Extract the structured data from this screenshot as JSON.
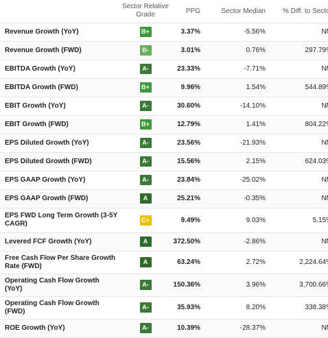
{
  "header": {
    "metric": "",
    "grade": "Sector Relative Grade",
    "ppg": "PPG",
    "median": "Sector Median",
    "diff": "% Diff. to Sector"
  },
  "grade_colors": {
    "A": "#2e6b2a",
    "A-": "#3b7a36",
    "B+": "#3d9a3a",
    "B-": "#62b055",
    "C+": "#e6c200"
  },
  "rows": [
    {
      "metric": "Revenue Growth (YoY)",
      "grade": "B+",
      "ppg": "3.37%",
      "median": "-5.56%",
      "diff": "NM"
    },
    {
      "metric": "Revenue Growth (FWD)",
      "grade": "B-",
      "ppg": "3.01%",
      "median": "0.76%",
      "diff": "297.79%"
    },
    {
      "metric": "EBITDA Growth (YoY)",
      "grade": "A-",
      "ppg": "23.33%",
      "median": "-7.71%",
      "diff": "NM"
    },
    {
      "metric": "EBITDA Growth (FWD)",
      "grade": "B+",
      "ppg": "9.96%",
      "median": "1.54%",
      "diff": "544.89%"
    },
    {
      "metric": "EBIT Growth (YoY)",
      "grade": "A-",
      "ppg": "30.60%",
      "median": "-14.10%",
      "diff": "NM"
    },
    {
      "metric": "EBIT Growth (FWD)",
      "grade": "B+",
      "ppg": "12.79%",
      "median": "1.41%",
      "diff": "804.22%"
    },
    {
      "metric": "EPS Diluted Growth (YoY)",
      "grade": "A-",
      "ppg": "23.56%",
      "median": "-21.93%",
      "diff": "NM"
    },
    {
      "metric": "EPS Diluted Growth (FWD)",
      "grade": "A-",
      "ppg": "15.56%",
      "median": "2.15%",
      "diff": "624.03%"
    },
    {
      "metric": "EPS GAAP Growth (YoY)",
      "grade": "A-",
      "ppg": "23.84%",
      "median": "-25.02%",
      "diff": "NM"
    },
    {
      "metric": "EPS GAAP Growth (FWD)",
      "grade": "A",
      "ppg": "25.21%",
      "median": "-0.35%",
      "diff": "NM"
    },
    {
      "metric": "EPS FWD Long Term Growth (3-5Y CAGR)",
      "grade": "C+",
      "ppg": "9.49%",
      "median": "9.03%",
      "diff": "5.15%"
    },
    {
      "metric": "Levered FCF Growth (YoY)",
      "grade": "A",
      "ppg": "372.50%",
      "median": "-2.86%",
      "diff": "NM"
    },
    {
      "metric": "Free Cash Flow Per Share Growth Rate (FWD)",
      "grade": "A",
      "ppg": "63.24%",
      "median": "2.72%",
      "diff": "2,224.64%"
    },
    {
      "metric": "Operating Cash Flow Growth (YoY)",
      "grade": "A-",
      "ppg": "150.36%",
      "median": "3.96%",
      "diff": "3,700.66%"
    },
    {
      "metric": "Operating Cash Flow Growth (FWD)",
      "grade": "A-",
      "ppg": "35.93%",
      "median": "8.20%",
      "diff": "338.38%"
    },
    {
      "metric": "ROE Growth (YoY)",
      "grade": "A-",
      "ppg": "10.39%",
      "median": "-28.37%",
      "diff": "NM"
    }
  ]
}
